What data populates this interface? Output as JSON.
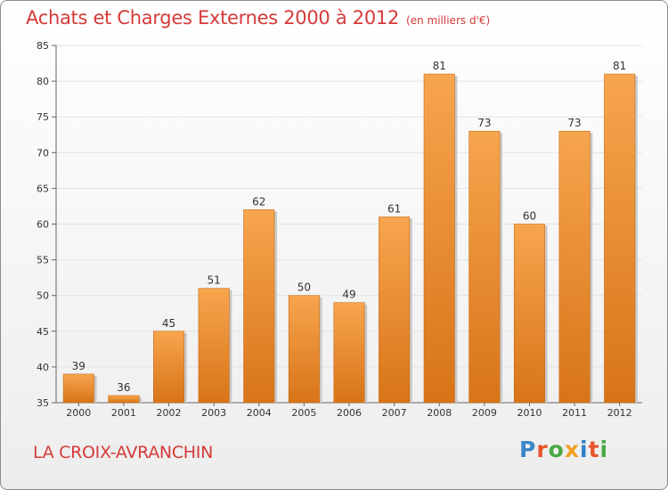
{
  "header": {
    "title": "Achats et Charges Externes 2000 à 2012",
    "unit": "(en milliers d'€)"
  },
  "footer": {
    "location": "LA CROIX-AVRANCHIN",
    "logo": {
      "text": "Proxiti",
      "letter_colors": [
        "#3b86c8",
        "#e8542c",
        "#4aa845",
        "#f2a024",
        "#2f7fc6",
        "#e8542c",
        "#4aa845"
      ]
    }
  },
  "chart_data": {
    "type": "bar",
    "categories": [
      "2000",
      "2001",
      "2002",
      "2003",
      "2004",
      "2005",
      "2006",
      "2007",
      "2008",
      "2009",
      "2010",
      "2011",
      "2012"
    ],
    "values": [
      39,
      36,
      45,
      51,
      62,
      50,
      49,
      61,
      81,
      73,
      60,
      73,
      81
    ],
    "title": "Achats et Charges Externes 2000 à 2012",
    "xlabel": "",
    "ylabel": "",
    "ylim": [
      35,
      85
    ],
    "yticks": [
      35,
      40,
      45,
      50,
      55,
      60,
      65,
      70,
      75,
      80,
      85
    ],
    "grid": true,
    "bar_color_top": "#f7a54e",
    "bar_color_bottom": "#d87418",
    "grid_color": "#e2e2e2"
  }
}
